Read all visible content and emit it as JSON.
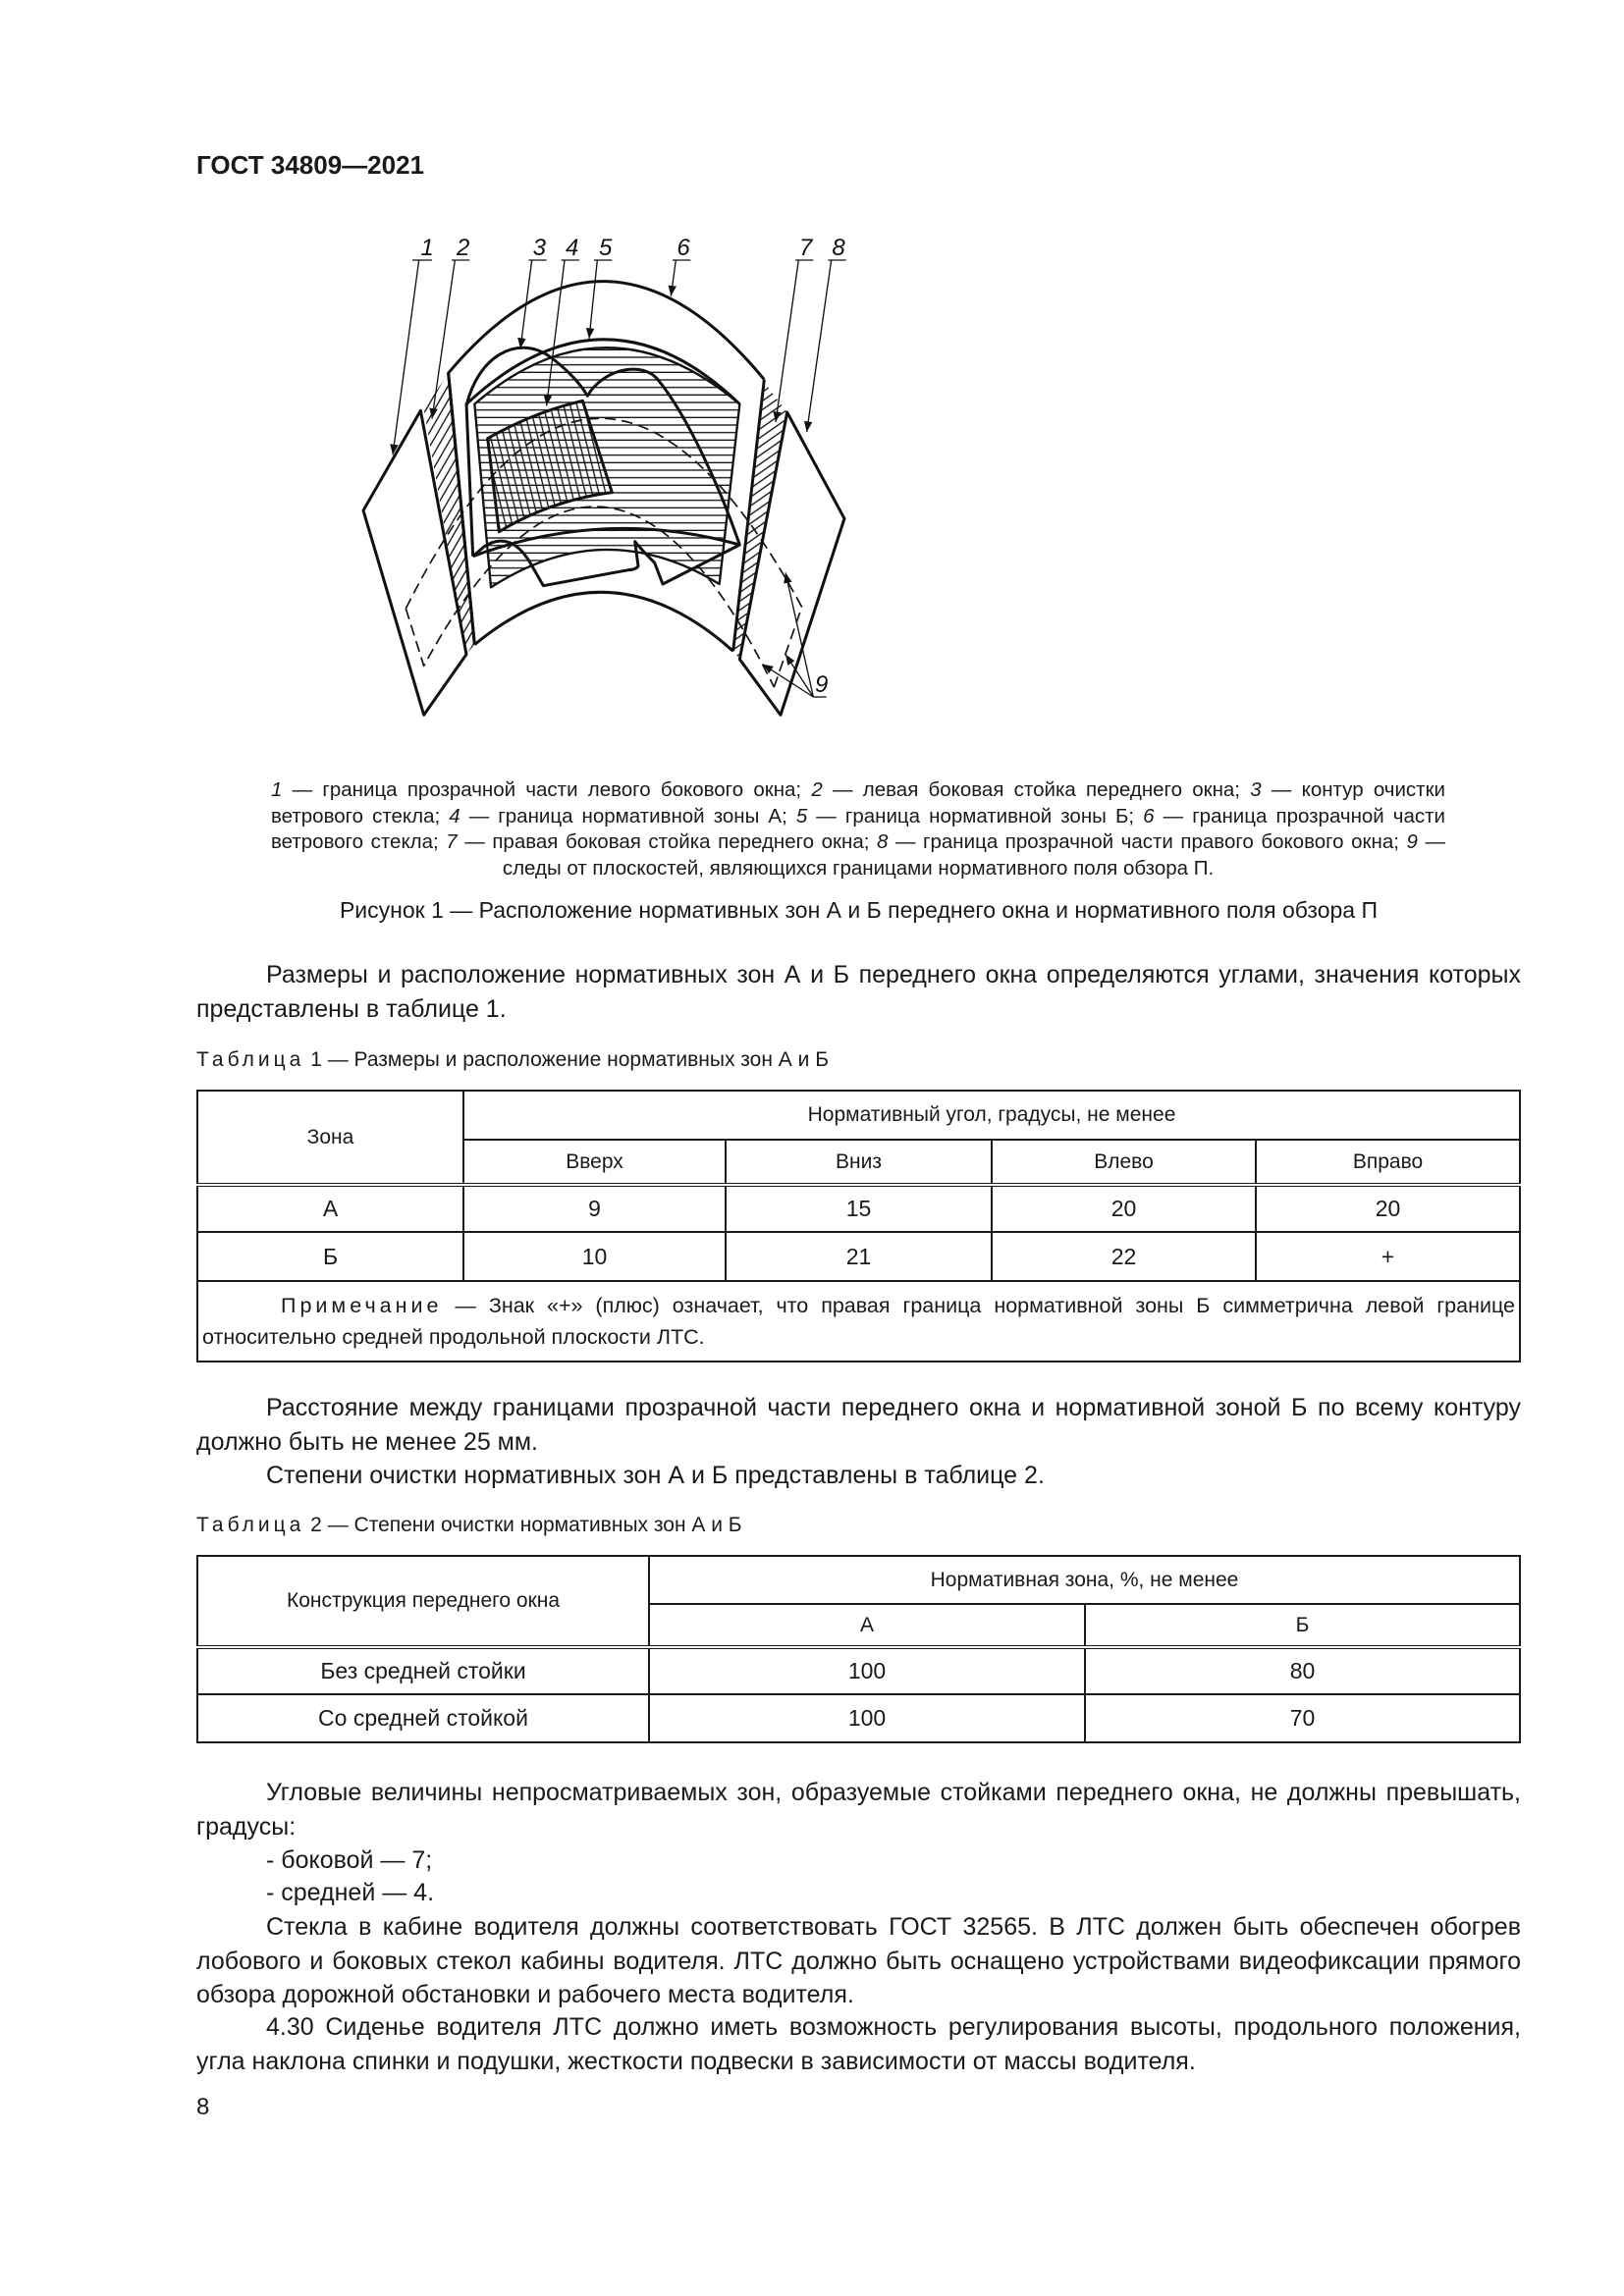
{
  "header": {
    "doc_title": "ГОСТ 34809—2021"
  },
  "figure": {
    "callouts": [
      "1",
      "2",
      "3",
      "4",
      "5",
      "6",
      "7",
      "8",
      "9"
    ],
    "legend": [
      {
        "num": "1",
        "text": " — граница прозрачной части левого бокового окна; "
      },
      {
        "num": "2",
        "text": " — левая боковая стойка переднего окна; "
      },
      {
        "num": "3",
        "text": " — контур очистки ветрового стекла; "
      },
      {
        "num": "4",
        "text": " — граница нормативной зоны А; "
      },
      {
        "num": "5",
        "text": " — граница нормативной зоны Б; "
      },
      {
        "num": "6",
        "text": " — граница прозрачной части ветрового стекла; "
      },
      {
        "num": "7",
        "text": " — правая боковая стойка переднего окна; "
      },
      {
        "num": "8",
        "text": " — граница прозрачной части правого бокового окна; "
      },
      {
        "num": "9",
        "text": " — следы от плоскостей, являющихся границами нормативного поля обзора П."
      }
    ],
    "caption": "Рисунок 1 — Расположение нормативных зон А и Б переднего окна и нормативного поля обзора П"
  },
  "paragraphs": [
    "Размеры и расположение нормативных зон А и Б переднего окна определяются углами, значения которых представлены в таблице 1.",
    "Расстояние между границами прозрачной части переднего окна и нормативной зоной Б по всему контуру должно быть не менее 25 мм.",
    "Степени очистки нормативных зон А и Б представлены в таблице 2.",
    "Угловые величины непросматриваемых зон, образуемые стойками переднего окна, не должны превышать, градусы:",
    "- боковой — 7;",
    "- средней — 4.",
    "Стекла в кабине водителя должны соответствовать ГОСТ 32565. В ЛТС должен быть обеспечен обогрев лобового и боковых стекол кабины водителя. ЛТС должно быть оснащено устройствами видео­фиксации прямого обзора дорожной обстановки и рабочего места водителя.",
    "4.30 Сиденье водителя ЛТС должно иметь возможность регулирования высоты, продольного по­ложения, угла наклона спинки и подушки, жесткости подвески в зависимости от массы водителя."
  ],
  "table1": {
    "label": "Таблица",
    "caption": " 1 — Размеры и расположение нормативных зон А и Б",
    "zone_header": "Зона",
    "group_header": "Нормативный угол, градусы, не менее",
    "columns": [
      "Вверх",
      "Вниз",
      "Влево",
      "Вправо"
    ],
    "rows": [
      {
        "zone": "А",
        "values": [
          "9",
          "15",
          "20",
          "20"
        ]
      },
      {
        "zone": "Б",
        "values": [
          "10",
          "21",
          "22",
          "+"
        ]
      }
    ],
    "note_label": "Примечание",
    "note_text": " — Знак «+» (плюс) означает, что правая граница нормативной зоны Б симметрична левой границе относительно средней продольной плоскости ЛТС."
  },
  "table2": {
    "label": "Таблица",
    "caption": " 2 — Степени очистки нормативных зон А и Б",
    "construction_header": "Конструкция переднего окна",
    "group_header": "Нормативная зона, %, не менее",
    "columns": [
      "А",
      "Б"
    ],
    "rows": [
      {
        "construction": "Без средней стойки",
        "values": [
          "100",
          "80"
        ]
      },
      {
        "construction": "Со средней стойкой",
        "values": [
          "100",
          "70"
        ]
      }
    ]
  },
  "page_number": "8"
}
